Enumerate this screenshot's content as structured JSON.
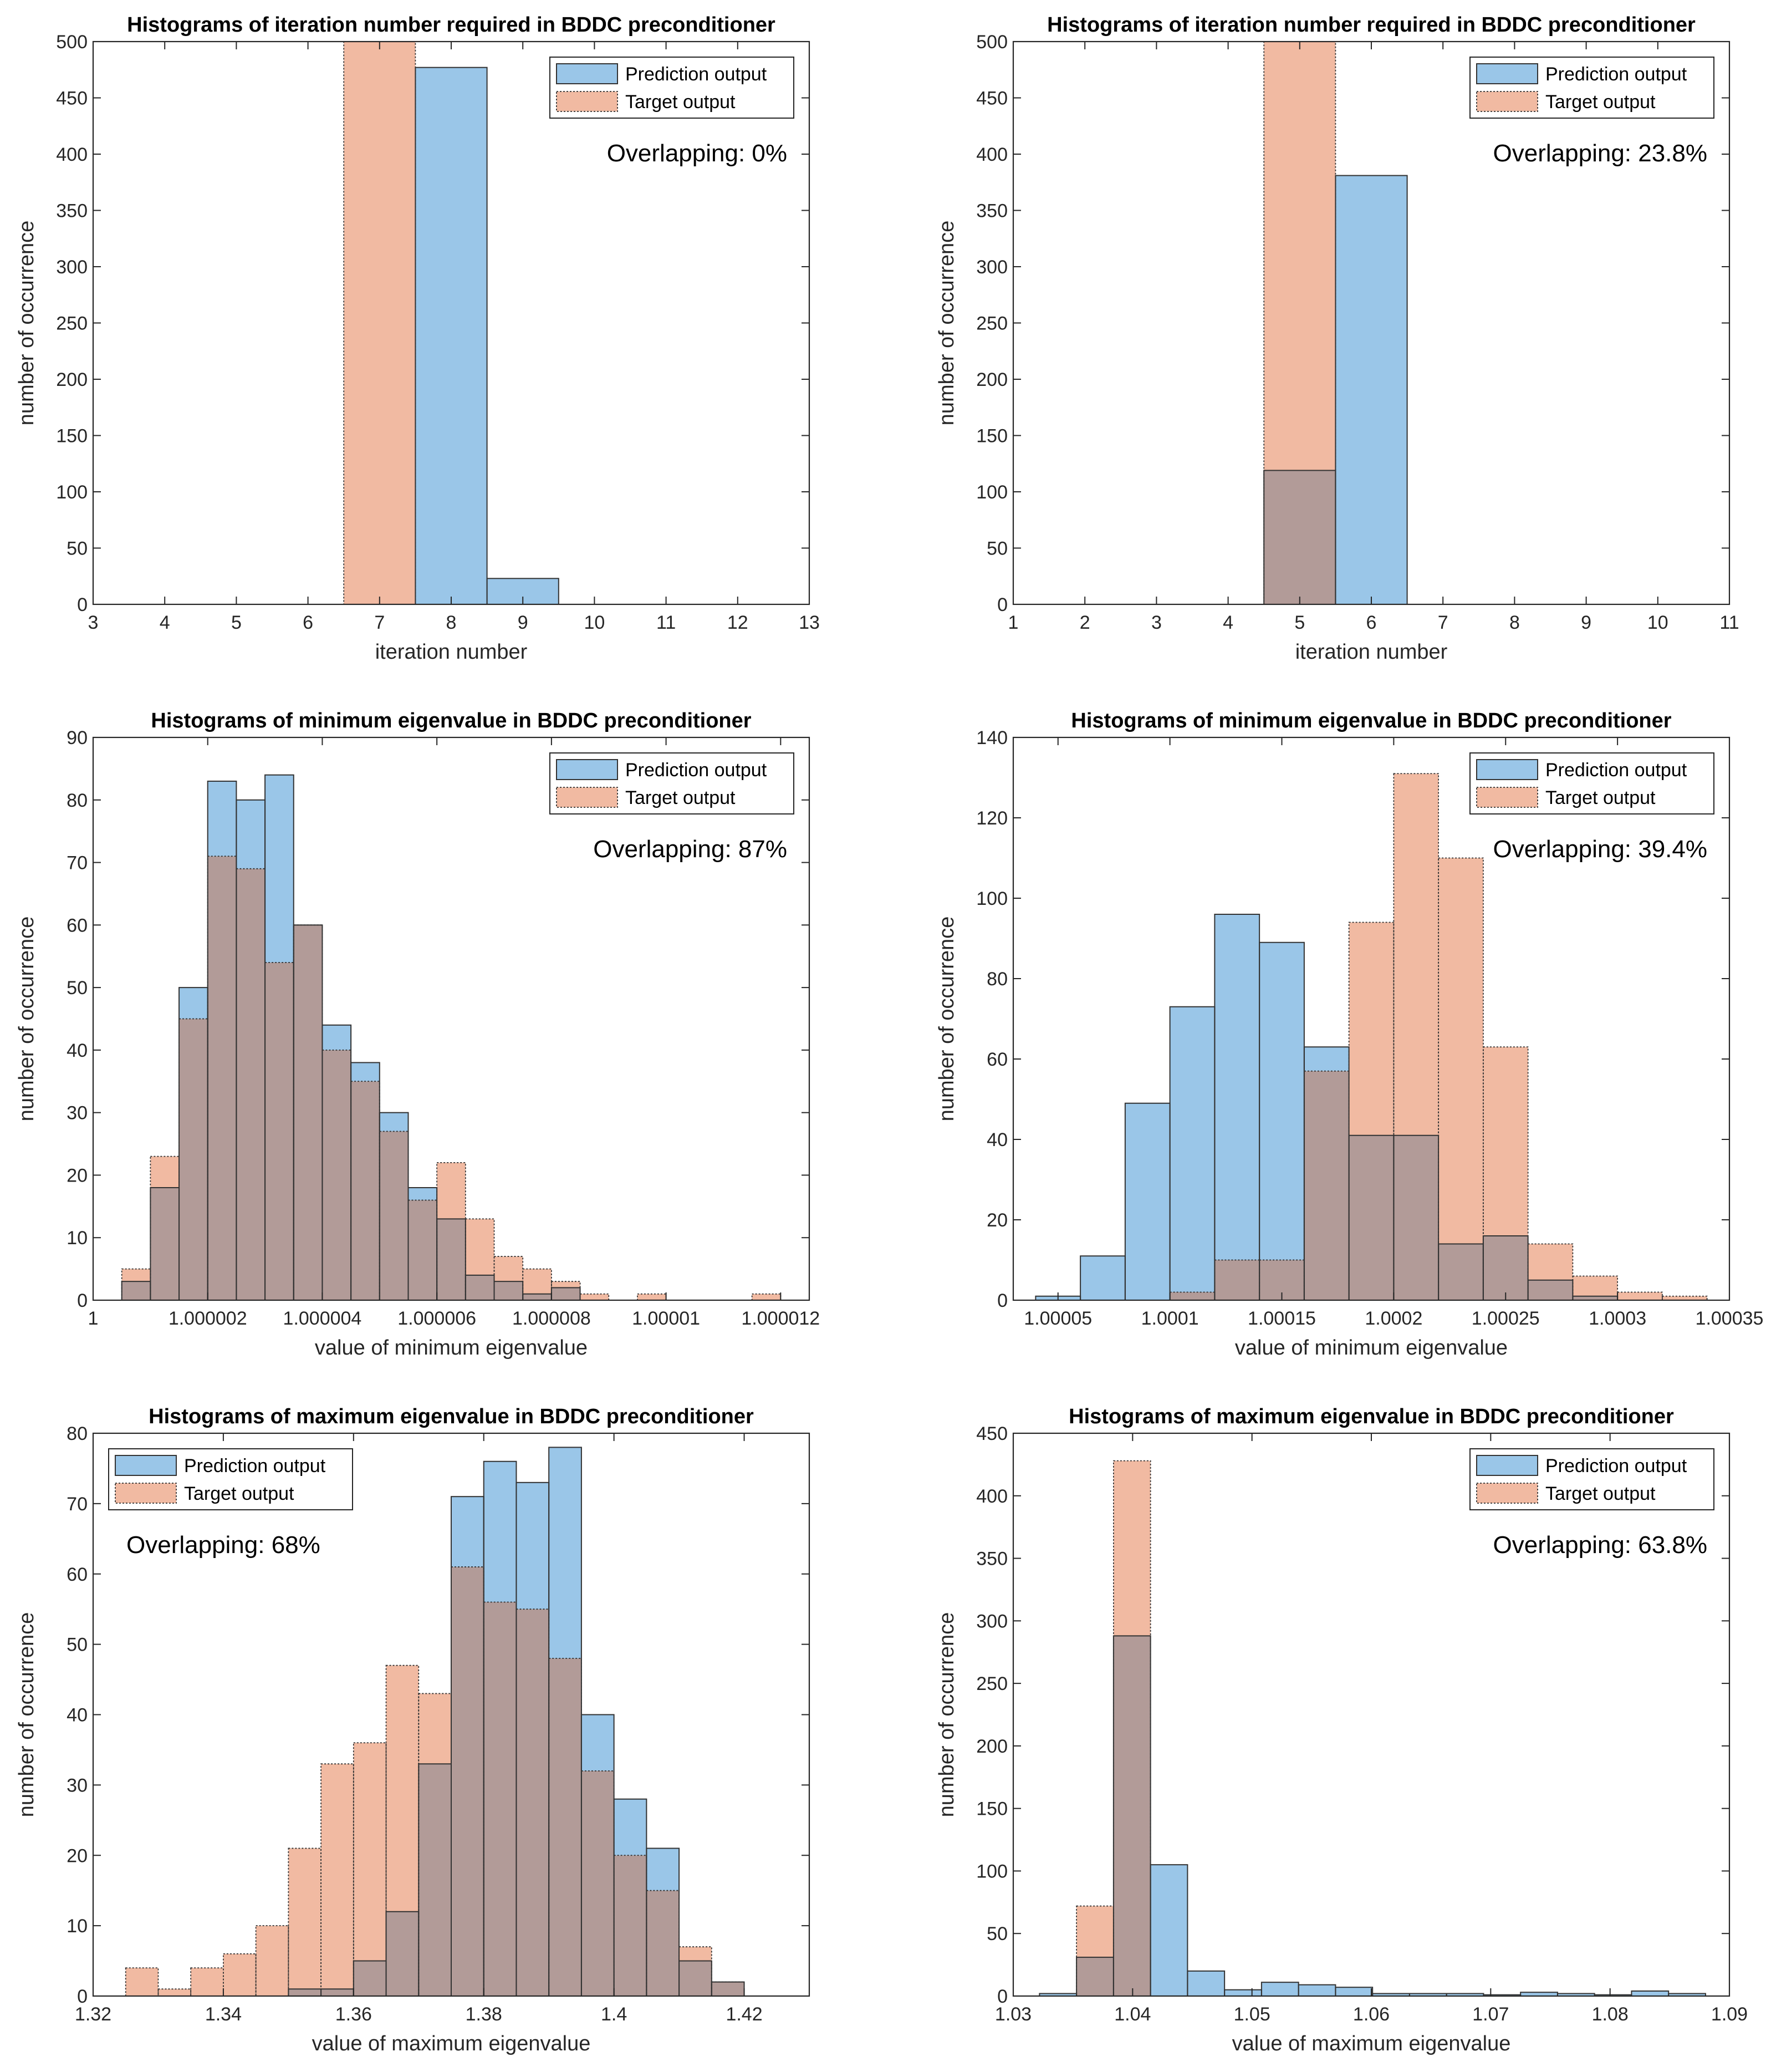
{
  "colors": {
    "prediction_fill": "#9ac6e8",
    "target_fill": "#f1baa2",
    "overlap_fill": "#b29b98",
    "edge": "#333333"
  },
  "chart_data": [
    {
      "type": "bar",
      "id": "iter-left",
      "title": "Histograms of iteration number required in BDDC preconditioner",
      "xlabel": "iteration number",
      "ylabel": "number of occurrence",
      "xlim": [
        3,
        13
      ],
      "ylim": [
        0,
        500
      ],
      "xticks": [
        3,
        4,
        5,
        6,
        7,
        8,
        9,
        10,
        11,
        12,
        13
      ],
      "xtick_labels": [
        "3",
        "4",
        "5",
        "6",
        "7",
        "8",
        "9",
        "10",
        "11",
        "12",
        "13"
      ],
      "yticks": [
        0,
        50,
        100,
        150,
        200,
        250,
        300,
        350,
        400,
        450,
        500
      ],
      "ytick_labels": [
        "0",
        "50",
        "100",
        "150",
        "200",
        "250",
        "300",
        "350",
        "400",
        "450",
        "500"
      ],
      "legend_position": "top-right",
      "annotation": "Overlapping: 0%",
      "annotation_position": "right",
      "series": [
        {
          "name": "Prediction output",
          "edges": [
            6.5,
            7.5,
            8.5,
            9.5
          ],
          "values": [
            0,
            477,
            23
          ]
        },
        {
          "name": "Target output",
          "edges": [
            6.5,
            7.5,
            8.5,
            9.5
          ],
          "values": [
            500,
            0,
            0
          ]
        }
      ]
    },
    {
      "type": "bar",
      "id": "iter-right",
      "title": "Histograms of iteration number required in BDDC preconditioner",
      "xlabel": "iteration number",
      "ylabel": "number of occurrence",
      "xlim": [
        1,
        11
      ],
      "ylim": [
        0,
        500
      ],
      "xticks": [
        1,
        2,
        3,
        4,
        5,
        6,
        7,
        8,
        9,
        10,
        11
      ],
      "xtick_labels": [
        "1",
        "2",
        "3",
        "4",
        "5",
        "6",
        "7",
        "8",
        "9",
        "10",
        "11"
      ],
      "yticks": [
        0,
        50,
        100,
        150,
        200,
        250,
        300,
        350,
        400,
        450,
        500
      ],
      "ytick_labels": [
        "0",
        "50",
        "100",
        "150",
        "200",
        "250",
        "300",
        "350",
        "400",
        "450",
        "500"
      ],
      "legend_position": "top-right",
      "annotation": "Overlapping: 23.8%",
      "annotation_position": "right",
      "series": [
        {
          "name": "Prediction output",
          "edges": [
            4.5,
            5.5,
            6.5
          ],
          "values": [
            119,
            381
          ]
        },
        {
          "name": "Target output",
          "edges": [
            4.5,
            5.5,
            6.5
          ],
          "values": [
            500,
            0
          ]
        }
      ]
    },
    {
      "type": "bar",
      "id": "mineig-left",
      "title": "Histograms of minimum eigenvalue in BDDC preconditioner",
      "xlabel": "value of minimum eigenvalue",
      "ylabel": "number of occurrence",
      "xlim": [
        1.0,
        1.0000125
      ],
      "ylim": [
        0,
        90
      ],
      "xticks": [
        1.0,
        1.000002,
        1.000004,
        1.000006,
        1.000008,
        1.00001,
        1.000012
      ],
      "xtick_labels": [
        "1",
        "1.000002",
        "1.000004",
        "1.000006",
        "1.000008",
        "1.00001",
        "1.000012"
      ],
      "yticks": [
        0,
        10,
        20,
        30,
        40,
        50,
        60,
        70,
        80,
        90
      ],
      "ytick_labels": [
        "0",
        "10",
        "20",
        "30",
        "40",
        "50",
        "60",
        "70",
        "80",
        "90"
      ],
      "legend_position": "top-right",
      "annotation": "Overlapping: 87%",
      "annotation_position": "right",
      "series": [
        {
          "name": "Prediction output",
          "edges": [
            1.0000005,
            1.000001,
            1.0000015,
            1.000002,
            1.0000025,
            1.000003,
            1.0000035,
            1.000004,
            1.0000045,
            1.000005,
            1.0000055,
            1.000006,
            1.0000065,
            1.000007,
            1.0000075,
            1.000008,
            1.0000085,
            1.000009,
            1.0000095,
            1.00001,
            1.0000105,
            1.000011,
            1.0000115,
            1.000012,
            1.0000125
          ],
          "values": [
            3,
            18,
            50,
            83,
            80,
            84,
            60,
            44,
            38,
            30,
            18,
            13,
            4,
            3,
            1,
            2,
            0,
            0,
            0,
            0,
            0,
            0,
            0,
            0
          ]
        },
        {
          "name": "Target output",
          "edges": [
            1.0000005,
            1.000001,
            1.0000015,
            1.000002,
            1.0000025,
            1.000003,
            1.0000035,
            1.000004,
            1.0000045,
            1.000005,
            1.0000055,
            1.000006,
            1.0000065,
            1.000007,
            1.0000075,
            1.000008,
            1.0000085,
            1.000009,
            1.0000095,
            1.00001,
            1.0000105,
            1.000011,
            1.0000115,
            1.000012,
            1.0000125
          ],
          "values": [
            5,
            23,
            45,
            71,
            69,
            54,
            60,
            40,
            35,
            27,
            16,
            22,
            13,
            7,
            5,
            3,
            1,
            0,
            1,
            0,
            0,
            0,
            1,
            0
          ]
        }
      ]
    },
    {
      "type": "bar",
      "id": "mineig-right",
      "title": "Histograms of minimum eigenvalue in BDDC preconditioner",
      "xlabel": "value of minimum eigenvalue",
      "ylabel": "number of occurrence",
      "xlim": [
        1.00003,
        1.00035
      ],
      "ylim": [
        0,
        140
      ],
      "xticks": [
        1.00005,
        1.0001,
        1.00015,
        1.0002,
        1.00025,
        1.0003,
        1.00035
      ],
      "xtick_labels": [
        "1.00005",
        "1.0001",
        "1.00015",
        "1.0002",
        "1.00025",
        "1.0003",
        "1.00035"
      ],
      "yticks": [
        0,
        20,
        40,
        60,
        80,
        100,
        120,
        140
      ],
      "ytick_labels": [
        "0",
        "20",
        "40",
        "60",
        "80",
        "100",
        "120",
        "140"
      ],
      "legend_position": "top-right",
      "annotation": "Overlapping: 39.4%",
      "annotation_position": "right",
      "series": [
        {
          "name": "Prediction output",
          "edges": [
            1.00004,
            1.00006,
            1.00008,
            1.0001,
            1.00012,
            1.00014,
            1.00016,
            1.00018,
            1.0002,
            1.00022,
            1.00024,
            1.00026,
            1.00028,
            1.0003,
            1.00032,
            1.00034
          ],
          "values": [
            1,
            11,
            49,
            73,
            96,
            89,
            63,
            41,
            41,
            14,
            16,
            5,
            1,
            0,
            0
          ]
        },
        {
          "name": "Target output",
          "edges": [
            1.00004,
            1.00006,
            1.00008,
            1.0001,
            1.00012,
            1.00014,
            1.00016,
            1.00018,
            1.0002,
            1.00022,
            1.00024,
            1.00026,
            1.00028,
            1.0003,
            1.00032,
            1.00034
          ],
          "values": [
            0,
            0,
            0,
            2,
            10,
            10,
            57,
            94,
            131,
            110,
            63,
            14,
            6,
            2,
            1
          ]
        }
      ]
    },
    {
      "type": "bar",
      "id": "maxeig-left",
      "title": "Histograms of maximum eigenvalue in BDDC preconditioner",
      "xlabel": "value of maximum eigenvalue",
      "ylabel": "number of occurrence",
      "xlim": [
        1.32,
        1.43
      ],
      "ylim": [
        0,
        80
      ],
      "xticks": [
        1.32,
        1.34,
        1.36,
        1.38,
        1.4,
        1.42
      ],
      "xtick_labels": [
        "1.32",
        "1.34",
        "1.36",
        "1.38",
        "1.4",
        "1.42"
      ],
      "yticks": [
        0,
        10,
        20,
        30,
        40,
        50,
        60,
        70,
        80
      ],
      "ytick_labels": [
        "0",
        "10",
        "20",
        "30",
        "40",
        "50",
        "60",
        "70",
        "80"
      ],
      "legend_position": "top-left",
      "annotation": "Overlapping: 68%",
      "annotation_position": "left",
      "series": [
        {
          "name": "Prediction output",
          "edges": [
            1.325,
            1.33,
            1.335,
            1.34,
            1.345,
            1.35,
            1.355,
            1.36,
            1.365,
            1.37,
            1.375,
            1.38,
            1.385,
            1.39,
            1.395,
            1.4,
            1.405,
            1.41,
            1.415,
            1.42,
            1.425
          ],
          "values": [
            0,
            0,
            0,
            0,
            0,
            1,
            1,
            5,
            12,
            33,
            71,
            76,
            73,
            78,
            40,
            28,
            21,
            5,
            2,
            0
          ]
        },
        {
          "name": "Target output",
          "edges": [
            1.325,
            1.33,
            1.335,
            1.34,
            1.345,
            1.35,
            1.355,
            1.36,
            1.365,
            1.37,
            1.375,
            1.38,
            1.385,
            1.39,
            1.395,
            1.4,
            1.405,
            1.41,
            1.415,
            1.42,
            1.425
          ],
          "values": [
            4,
            1,
            4,
            6,
            10,
            21,
            33,
            36,
            47,
            43,
            61,
            56,
            55,
            48,
            32,
            20,
            15,
            7,
            2,
            0
          ]
        }
      ]
    },
    {
      "type": "bar",
      "id": "maxeig-right",
      "title": "Histograms of maximum eigenvalue in BDDC preconditioner",
      "xlabel": "value of maximum eigenvalue",
      "ylabel": "number of occurrence",
      "xlim": [
        1.03,
        1.09
      ],
      "ylim": [
        0,
        450
      ],
      "xticks": [
        1.03,
        1.04,
        1.05,
        1.06,
        1.07,
        1.08,
        1.09
      ],
      "xtick_labels": [
        "1.03",
        "1.04",
        "1.05",
        "1.06",
        "1.07",
        "1.08",
        "1.09"
      ],
      "yticks": [
        0,
        50,
        100,
        150,
        200,
        250,
        300,
        350,
        400,
        450
      ],
      "ytick_labels": [
        "0",
        "50",
        "100",
        "150",
        "200",
        "250",
        "300",
        "350",
        "400",
        "450"
      ],
      "legend_position": "top-right",
      "annotation": "Overlapping: 63.8%",
      "annotation_position": "right",
      "series": [
        {
          "name": "Prediction output",
          "edges": [
            1.0322,
            1.0353,
            1.0384,
            1.0415,
            1.0446,
            1.0477,
            1.0508,
            1.0539,
            1.057,
            1.0601,
            1.0632,
            1.0663,
            1.0694,
            1.0725,
            1.0756,
            1.0787,
            1.0818,
            1.0849,
            1.088
          ],
          "values": [
            2,
            31,
            288,
            105,
            20,
            5,
            11,
            9,
            7,
            2,
            2,
            2,
            1,
            3,
            2,
            1,
            4,
            2
          ]
        },
        {
          "name": "Target output",
          "edges": [
            1.0322,
            1.0353,
            1.0384,
            1.0415,
            1.0446,
            1.0477,
            1.0508,
            1.0539,
            1.057,
            1.0601,
            1.0632,
            1.0663,
            1.0694,
            1.0725,
            1.0756,
            1.0787,
            1.0818,
            1.0849,
            1.088
          ],
          "values": [
            0,
            72,
            428,
            0,
            0,
            0,
            0,
            0,
            0,
            0,
            0,
            0,
            0,
            0,
            0,
            0,
            0,
            0
          ]
        }
      ]
    }
  ]
}
